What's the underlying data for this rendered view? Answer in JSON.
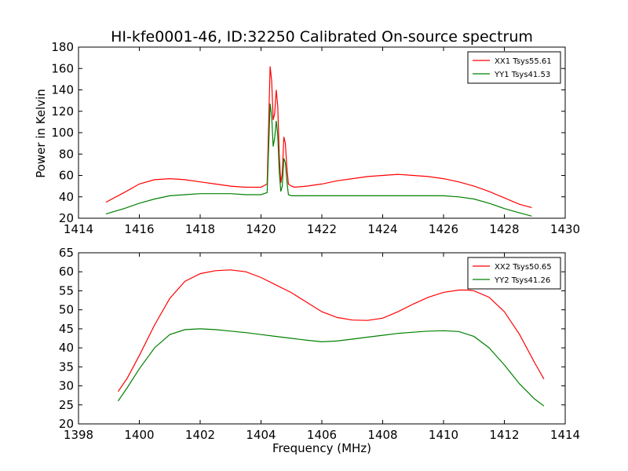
{
  "chart_data": [
    {
      "type": "line",
      "title": "HI-kfe0001-46, ID:32250 Calibrated On-source spectrum",
      "xlabel": "",
      "ylabel": "Power in Kelvin",
      "xlim": [
        1414,
        1430
      ],
      "ylim": [
        20,
        180
      ],
      "xticks": [
        1414,
        1416,
        1418,
        1420,
        1422,
        1424,
        1426,
        1428,
        1430
      ],
      "yticks": [
        20,
        40,
        60,
        80,
        100,
        120,
        140,
        160,
        180
      ],
      "legend": "top-right",
      "series": [
        {
          "name": "XX1 Tsys55.61",
          "color": "#ff0000",
          "x": [
            1414.9,
            1415.5,
            1416.0,
            1416.5,
            1417.0,
            1417.5,
            1418.0,
            1418.5,
            1419.0,
            1419.5,
            1420.0,
            1420.2,
            1420.3,
            1420.35,
            1420.4,
            1420.45,
            1420.5,
            1420.55,
            1420.6,
            1420.65,
            1420.7,
            1420.75,
            1420.8,
            1420.85,
            1420.9,
            1421.0,
            1421.1,
            1421.5,
            1422.0,
            1422.5,
            1423.0,
            1423.5,
            1424.0,
            1424.5,
            1425.0,
            1425.5,
            1426.0,
            1426.5,
            1427.0,
            1427.5,
            1428.0,
            1428.5,
            1428.9
          ],
          "y": [
            35,
            44,
            52,
            56,
            57,
            56,
            54,
            52,
            50,
            49,
            49,
            52,
            162,
            148,
            112,
            118,
            140,
            125,
            80,
            53,
            62,
            96,
            90,
            68,
            52,
            50,
            49,
            50,
            52,
            55,
            57,
            59,
            60,
            61,
            60,
            59,
            57,
            54,
            50,
            45,
            39,
            33,
            30
          ]
        },
        {
          "name": "YY1 Tsys41.53",
          "color": "#008000",
          "x": [
            1414.9,
            1415.5,
            1416.0,
            1416.5,
            1417.0,
            1417.5,
            1418.0,
            1418.5,
            1419.0,
            1419.5,
            1420.0,
            1420.2,
            1420.3,
            1420.35,
            1420.4,
            1420.45,
            1420.5,
            1420.55,
            1420.6,
            1420.65,
            1420.7,
            1420.75,
            1420.8,
            1420.85,
            1420.9,
            1421.0,
            1421.1,
            1421.5,
            1422.0,
            1422.5,
            1423.0,
            1423.5,
            1424.0,
            1424.5,
            1425.0,
            1425.5,
            1426.0,
            1426.5,
            1427.0,
            1427.5,
            1428.0,
            1428.5,
            1428.9
          ],
          "y": [
            24,
            29,
            34,
            38,
            41,
            42,
            43,
            43,
            43,
            42,
            42,
            44,
            127,
            115,
            87,
            95,
            111,
            98,
            64,
            45,
            50,
            76,
            72,
            55,
            42,
            41,
            41,
            41,
            41,
            41,
            41,
            41,
            41,
            41,
            41,
            41,
            41,
            40,
            38,
            34,
            29,
            25,
            22
          ]
        }
      ]
    },
    {
      "type": "line",
      "title": "",
      "xlabel": "Frequency (MHz)",
      "ylabel": "",
      "xlim": [
        1398,
        1414
      ],
      "ylim": [
        20,
        65
      ],
      "xticks": [
        1398,
        1400,
        1402,
        1404,
        1406,
        1408,
        1410,
        1412,
        1414
      ],
      "yticks": [
        20,
        25,
        30,
        35,
        40,
        45,
        50,
        55,
        60,
        65
      ],
      "legend": "top-right",
      "series": [
        {
          "name": "XX2 Tsys50.65",
          "color": "#ff0000",
          "x": [
            1399.3,
            1399.6,
            1400.0,
            1400.5,
            1401.0,
            1401.5,
            1402.0,
            1402.5,
            1403.0,
            1403.5,
            1404.0,
            1404.5,
            1405.0,
            1405.5,
            1406.0,
            1406.5,
            1407.0,
            1407.5,
            1408.0,
            1408.5,
            1409.0,
            1409.5,
            1410.0,
            1410.5,
            1410.8,
            1411.0,
            1411.5,
            1412.0,
            1412.5,
            1413.0,
            1413.3
          ],
          "y": [
            28.5,
            32,
            38,
            46,
            53,
            57.5,
            59.5,
            60.3,
            60.5,
            60,
            58.5,
            56.5,
            54.5,
            52,
            49.5,
            48,
            47.3,
            47.2,
            47.8,
            49.5,
            51.5,
            53.3,
            54.6,
            55.2,
            55.2,
            55,
            53.3,
            49.5,
            43.5,
            36,
            31.8
          ]
        },
        {
          "name": "YY2 Tsys41.26",
          "color": "#008000",
          "x": [
            1399.3,
            1399.6,
            1400.0,
            1400.5,
            1401.0,
            1401.5,
            1402.0,
            1402.5,
            1403.0,
            1403.5,
            1404.0,
            1404.5,
            1405.0,
            1405.5,
            1406.0,
            1406.5,
            1407.0,
            1407.5,
            1408.0,
            1408.5,
            1409.0,
            1409.5,
            1410.0,
            1410.5,
            1411.0,
            1411.5,
            1412.0,
            1412.5,
            1413.0,
            1413.3
          ],
          "y": [
            26,
            29.5,
            34.5,
            40,
            43.5,
            44.8,
            45,
            44.8,
            44.4,
            44,
            43.5,
            43,
            42.5,
            42,
            41.6,
            41.8,
            42.3,
            42.8,
            43.3,
            43.8,
            44.1,
            44.4,
            44.5,
            44.3,
            43,
            40,
            35.5,
            30.5,
            26.5,
            24.7
          ]
        }
      ]
    }
  ]
}
